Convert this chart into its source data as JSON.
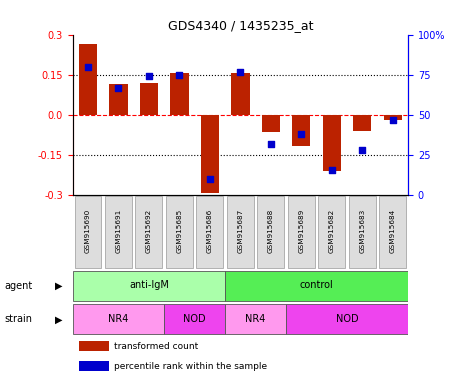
{
  "title": "GDS4340 / 1435235_at",
  "samples": [
    "GSM915690",
    "GSM915691",
    "GSM915692",
    "GSM915685",
    "GSM915686",
    "GSM915687",
    "GSM915688",
    "GSM915689",
    "GSM915682",
    "GSM915683",
    "GSM915684"
  ],
  "bar_values": [
    0.265,
    0.115,
    0.12,
    0.155,
    -0.29,
    0.155,
    -0.065,
    -0.115,
    -0.21,
    -0.06,
    -0.02
  ],
  "percentile_values": [
    80,
    67,
    74,
    75,
    10,
    77,
    32,
    38,
    16,
    28,
    47
  ],
  "bar_color": "#BB2200",
  "dot_color": "#0000CC",
  "ylim": [
    -0.3,
    0.3
  ],
  "y2lim": [
    0,
    100
  ],
  "yticks": [
    -0.3,
    -0.15,
    0.0,
    0.15,
    0.3
  ],
  "y2ticks": [
    0,
    25,
    50,
    75,
    100
  ],
  "hlines": [
    -0.15,
    0.0,
    0.15
  ],
  "hline_styles": [
    "dotted",
    "dashed",
    "dotted"
  ],
  "hline_colors": [
    "black",
    "red",
    "black"
  ],
  "agent_spans": [
    [
      "anti-IgM",
      0,
      5,
      "#AAFFAA"
    ],
    [
      "control",
      5,
      11,
      "#55EE55"
    ]
  ],
  "strain_spans": [
    [
      "NR4",
      0,
      3,
      "#FF99EE"
    ],
    [
      "NOD",
      3,
      5,
      "#EE44EE"
    ],
    [
      "NR4",
      5,
      7,
      "#FF99EE"
    ],
    [
      "NOD",
      7,
      11,
      "#EE44EE"
    ]
  ],
  "legend_items": [
    "transformed count",
    "percentile rank within the sample"
  ],
  "legend_colors": [
    "#BB2200",
    "#0000CC"
  ],
  "background_color": "#FFFFFF",
  "box_color": "#DDDDDD",
  "box_edge_color": "#999999"
}
